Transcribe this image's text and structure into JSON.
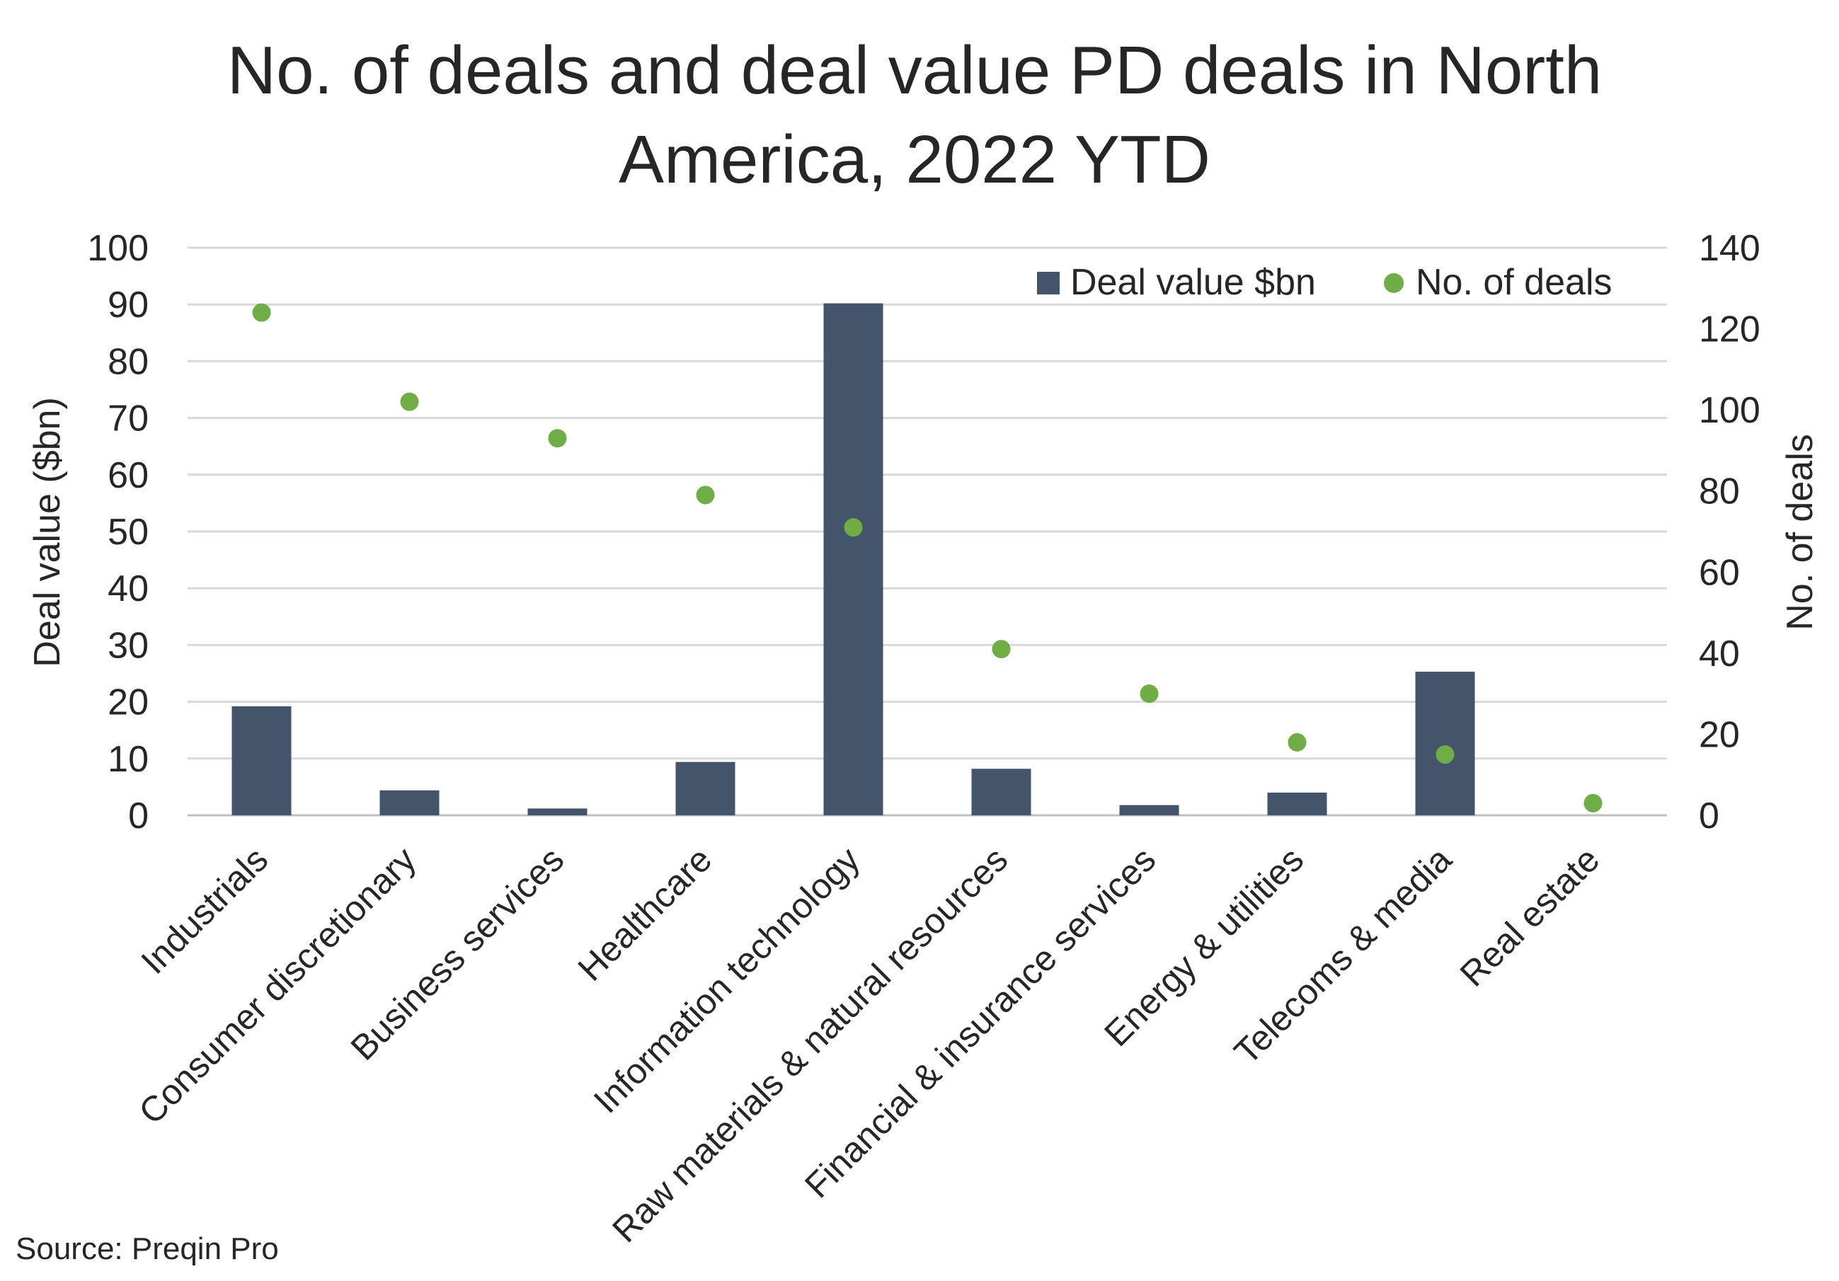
{
  "chart_data": {
    "type": "bar+scatter",
    "title_lines": [
      "No. of deals and deal value PD deals in North",
      "America, 2022 YTD"
    ],
    "ylabel": "Deal value ($bn)",
    "y2label": "No. of deals",
    "ylim": [
      0,
      100
    ],
    "y2lim": [
      0,
      140
    ],
    "yticks": [
      "0",
      "10",
      "20",
      "30",
      "40",
      "50",
      "60",
      "70",
      "80",
      "90",
      "100"
    ],
    "y2ticks": [
      "0",
      "20",
      "40",
      "60",
      "80",
      "100",
      "120",
      "140"
    ],
    "categories": [
      "Industrials",
      "Consumer discretionary",
      "Business services",
      "Healthcare",
      "Information technology",
      "Raw materials & natural resources",
      "Financial & insurance services",
      "Energy & utilities",
      "Telecoms & media",
      "Real estate"
    ],
    "series": [
      {
        "name": "Deal value $bn",
        "kind": "bar",
        "axis": "left",
        "color": "#44546A",
        "values": [
          19.2,
          4.4,
          1.2,
          9.4,
          90.2,
          8.2,
          1.8,
          4.0,
          25.3,
          0
        ]
      },
      {
        "name": "No. of deals",
        "kind": "scatter",
        "axis": "right",
        "color": "#70AD47",
        "values": [
          124,
          102,
          93,
          79,
          71,
          41,
          30,
          18,
          15,
          3
        ]
      }
    ],
    "grid": true,
    "legend": "top-right"
  },
  "source": "Source: Preqin Pro"
}
